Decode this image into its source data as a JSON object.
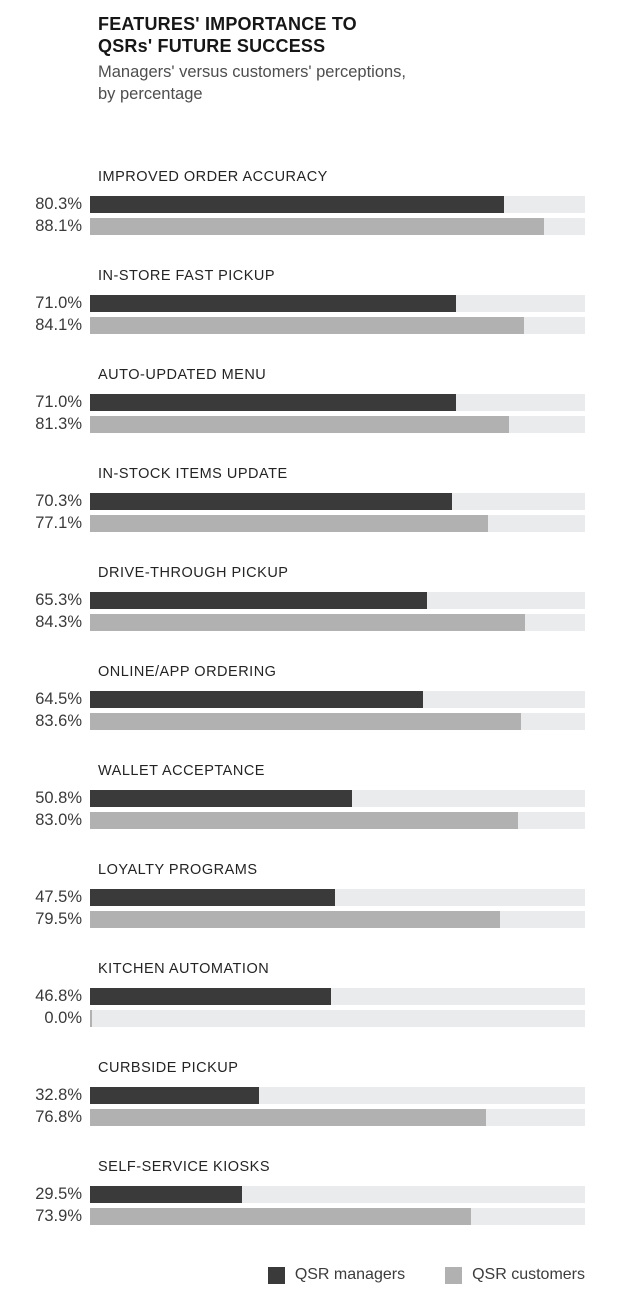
{
  "header": {
    "title_line1": "FEATURES' IMPORTANCE TO",
    "title_line2": "QSRs' FUTURE SUCCESS",
    "subtitle_line1": "Managers' versus customers' perceptions,",
    "subtitle_line2": "by percentage"
  },
  "chart_data": {
    "type": "bar",
    "orientation": "horizontal",
    "title": "FEATURES' IMPORTANCE TO QSRs' FUTURE SUCCESS",
    "subtitle": "Managers' versus customers' perceptions, by percentage",
    "categories": [
      "IMPROVED ORDER ACCURACY",
      "IN-STORE FAST PICKUP",
      "AUTO-UPDATED MENU",
      "IN-STOCK ITEMS UPDATE",
      "DRIVE-THROUGH PICKUP",
      "ONLINE/APP ORDERING",
      "WALLET ACCEPTANCE",
      "LOYALTY PROGRAMS",
      "KITCHEN AUTOMATION",
      "CURBSIDE PICKUP",
      "SELF-SERVICE KIOSKS"
    ],
    "series": [
      {
        "name": "QSR managers",
        "color": "#3a3a3a",
        "values": [
          80.3,
          71.0,
          71.0,
          70.3,
          65.3,
          64.5,
          50.8,
          47.5,
          46.8,
          32.8,
          29.5
        ]
      },
      {
        "name": "QSR customers",
        "color": "#b1b1b1",
        "values": [
          88.1,
          84.1,
          81.3,
          77.1,
          84.3,
          83.6,
          83.0,
          79.5,
          0.0,
          76.8,
          73.9
        ]
      }
    ],
    "value_format": "one_decimal_percent",
    "xlim": [
      0,
      96
    ],
    "track_color": "#eaebec",
    "grid": false,
    "legend_position": "bottom-right"
  }
}
